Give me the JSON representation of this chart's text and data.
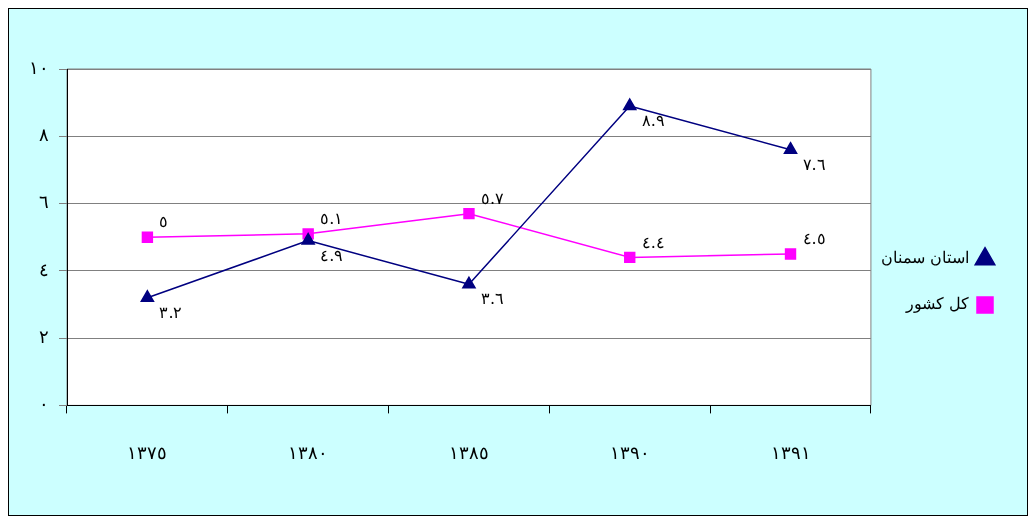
{
  "chart_data": {
    "type": "line",
    "categories": [
      "١٣٧٥",
      "١٣٨٠",
      "١٣٨٥",
      "١٣٩٠",
      "١٣٩١"
    ],
    "series": [
      {
        "name": "استان سمنان",
        "color": "#000080",
        "marker": "triangle",
        "values": [
          3.2,
          4.9,
          3.6,
          8.9,
          7.6
        ],
        "value_labels": [
          "٣.٢",
          "٤.٩",
          "٣.٦",
          "٨.٩",
          "٧.٦"
        ]
      },
      {
        "name": "کل کشور",
        "color": "#ff00ff",
        "marker": "square",
        "values": [
          5,
          5.1,
          5.7,
          4.4,
          4.5
        ],
        "value_labels": [
          "٥",
          "٥.١",
          "٥.٧",
          "٤.٤",
          "٤.٥"
        ]
      }
    ],
    "ylim": [
      0,
      10
    ],
    "yticks": [
      {
        "value": 0,
        "label": "٠"
      },
      {
        "value": 2,
        "label": "٢"
      },
      {
        "value": 4,
        "label": "٤"
      },
      {
        "value": 6,
        "label": "٦"
      },
      {
        "value": 8,
        "label": "٨"
      },
      {
        "value": 10,
        "label": "١٠"
      }
    ],
    "grid": "y",
    "legend": "right"
  }
}
